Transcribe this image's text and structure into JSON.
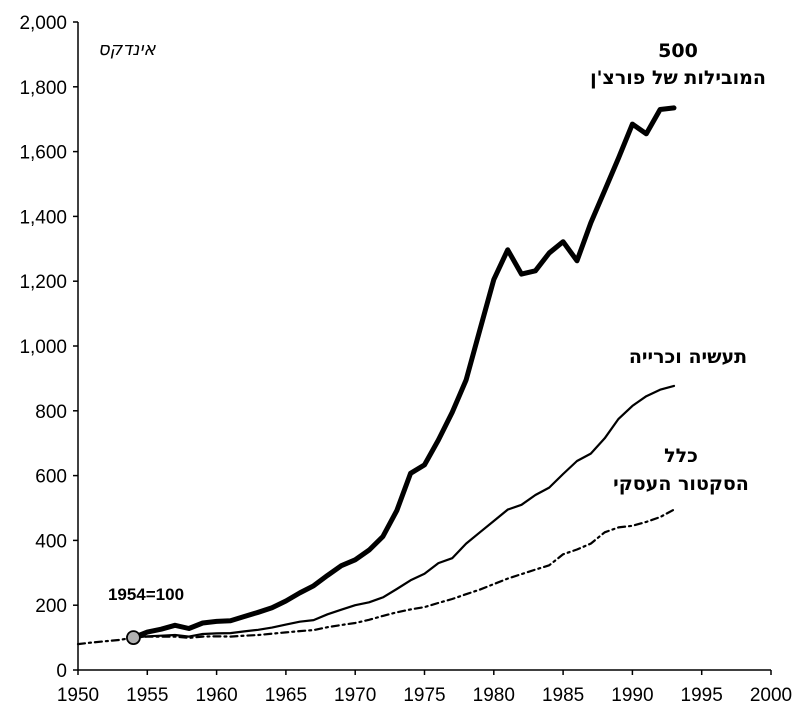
{
  "chart_data": {
    "type": "line",
    "title": "",
    "xlabel": "",
    "ylabel": "אינדקס",
    "xlim": [
      1950,
      2000
    ],
    "ylim": [
      0,
      2000
    ],
    "x_ticks": [
      1950,
      1955,
      1960,
      1965,
      1970,
      1975,
      1980,
      1985,
      1990,
      1995,
      2000
    ],
    "y_ticks": [
      0,
      200,
      400,
      600,
      800,
      1000,
      1200,
      1400,
      1600,
      1800,
      2000
    ],
    "y_tick_labels": [
      "0",
      "200",
      "400",
      "600",
      "800",
      "1,000",
      "1,200",
      "1,400",
      "1,600",
      "1,800",
      "2,000"
    ],
    "grid": false,
    "base_marker": {
      "x": 1954,
      "y": 100,
      "label": "1954=100"
    },
    "series": [
      {
        "name": "500 המובילות של פורצ'ן",
        "label_lines": [
          "500",
          "המובילות של פורצ'ן"
        ],
        "style": "thick",
        "points": [
          [
            1954,
            100
          ],
          [
            1955,
            117
          ],
          [
            1956,
            126
          ],
          [
            1957,
            138
          ],
          [
            1958,
            128
          ],
          [
            1959,
            145
          ],
          [
            1960,
            150
          ],
          [
            1961,
            152
          ],
          [
            1962,
            165
          ],
          [
            1963,
            178
          ],
          [
            1964,
            192
          ],
          [
            1965,
            213
          ],
          [
            1966,
            238
          ],
          [
            1967,
            260
          ],
          [
            1968,
            292
          ],
          [
            1969,
            322
          ],
          [
            1970,
            340
          ],
          [
            1971,
            370
          ],
          [
            1972,
            412
          ],
          [
            1973,
            492
          ],
          [
            1974,
            607
          ],
          [
            1975,
            633
          ],
          [
            1976,
            710
          ],
          [
            1977,
            795
          ],
          [
            1978,
            895
          ],
          [
            1979,
            1050
          ],
          [
            1980,
            1205
          ],
          [
            1981,
            1297
          ],
          [
            1982,
            1222
          ],
          [
            1983,
            1232
          ],
          [
            1984,
            1287
          ],
          [
            1985,
            1322
          ],
          [
            1986,
            1263
          ],
          [
            1987,
            1380
          ],
          [
            1988,
            1480
          ],
          [
            1989,
            1580
          ],
          [
            1990,
            1685
          ],
          [
            1991,
            1655
          ],
          [
            1992,
            1730
          ],
          [
            1993,
            1735
          ]
        ]
      },
      {
        "name": "תעשיה וכרייה",
        "label_lines": [
          "תעשיה וכרייה"
        ],
        "style": "medium",
        "points": [
          [
            1954,
            100
          ],
          [
            1955,
            104
          ],
          [
            1956,
            106
          ],
          [
            1957,
            108
          ],
          [
            1958,
            103
          ],
          [
            1959,
            111
          ],
          [
            1960,
            113
          ],
          [
            1961,
            114
          ],
          [
            1962,
            119
          ],
          [
            1963,
            124
          ],
          [
            1964,
            131
          ],
          [
            1965,
            140
          ],
          [
            1966,
            149
          ],
          [
            1967,
            154
          ],
          [
            1968,
            172
          ],
          [
            1969,
            186
          ],
          [
            1970,
            200
          ],
          [
            1971,
            209
          ],
          [
            1972,
            224
          ],
          [
            1973,
            250
          ],
          [
            1974,
            277
          ],
          [
            1975,
            297
          ],
          [
            1976,
            330
          ],
          [
            1977,
            345
          ],
          [
            1978,
            390
          ],
          [
            1979,
            425
          ],
          [
            1980,
            460
          ],
          [
            1981,
            495
          ],
          [
            1982,
            510
          ],
          [
            1983,
            540
          ],
          [
            1984,
            563
          ],
          [
            1985,
            605
          ],
          [
            1986,
            645
          ],
          [
            1987,
            668
          ],
          [
            1988,
            715
          ],
          [
            1989,
            775
          ],
          [
            1990,
            815
          ],
          [
            1991,
            845
          ],
          [
            1992,
            865
          ],
          [
            1993,
            877
          ]
        ]
      },
      {
        "name": "כלל הסקטור העסקי",
        "label_lines": [
          "כלל",
          "הסקטור העסקי"
        ],
        "style": "dashed",
        "points": [
          [
            1950,
            80
          ],
          [
            1951,
            85
          ],
          [
            1952,
            89
          ],
          [
            1953,
            93
          ],
          [
            1954,
            100
          ],
          [
            1955,
            103
          ],
          [
            1956,
            103
          ],
          [
            1957,
            103
          ],
          [
            1958,
            99
          ],
          [
            1959,
            103
          ],
          [
            1960,
            104
          ],
          [
            1961,
            103
          ],
          [
            1962,
            106
          ],
          [
            1963,
            108
          ],
          [
            1964,
            112
          ],
          [
            1965,
            116
          ],
          [
            1966,
            120
          ],
          [
            1967,
            123
          ],
          [
            1968,
            132
          ],
          [
            1969,
            139
          ],
          [
            1970,
            145
          ],
          [
            1971,
            155
          ],
          [
            1972,
            167
          ],
          [
            1973,
            178
          ],
          [
            1974,
            187
          ],
          [
            1975,
            194
          ],
          [
            1976,
            207
          ],
          [
            1977,
            219
          ],
          [
            1978,
            234
          ],
          [
            1979,
            248
          ],
          [
            1980,
            265
          ],
          [
            1981,
            282
          ],
          [
            1982,
            296
          ],
          [
            1983,
            310
          ],
          [
            1984,
            323
          ],
          [
            1985,
            357
          ],
          [
            1986,
            372
          ],
          [
            1987,
            390
          ],
          [
            1988,
            425
          ],
          [
            1989,
            440
          ],
          [
            1990,
            445
          ],
          [
            1991,
            457
          ],
          [
            1992,
            472
          ],
          [
            1993,
            495
          ]
        ]
      }
    ]
  }
}
